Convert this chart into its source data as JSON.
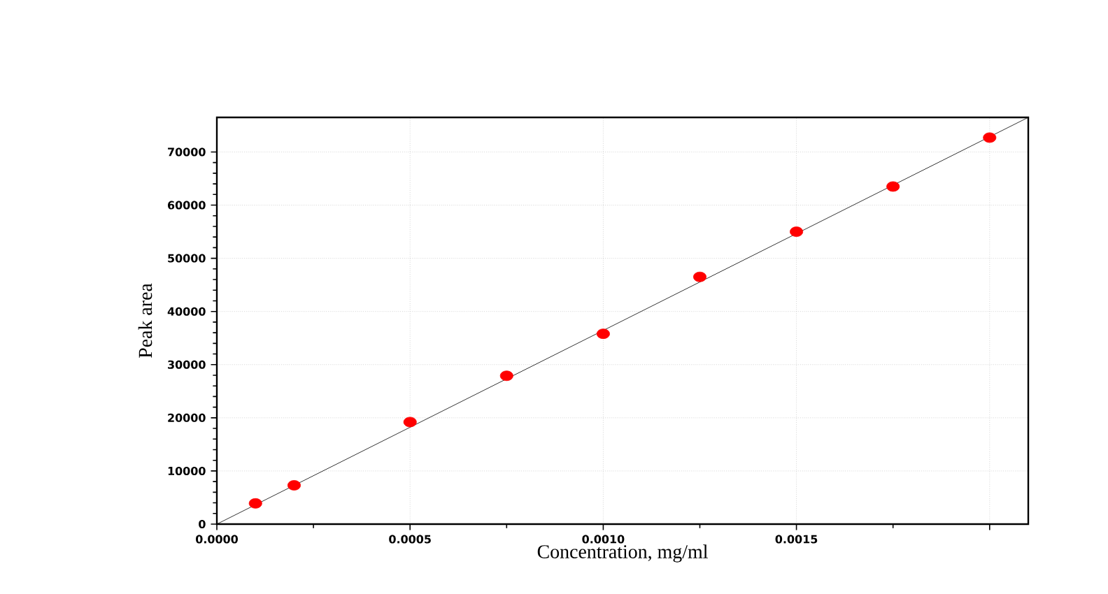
{
  "chart_data": {
    "type": "scatter",
    "xlabel": "Concentration, mg/ml",
    "ylabel": "Peak area",
    "xlim": [
      0,
      0.0021
    ],
    "ylim": [
      0,
      76500
    ],
    "xticks": [
      {
        "value": 0,
        "label": "0.0000"
      },
      {
        "value": 0.0005,
        "label": "0.0005"
      },
      {
        "value": 0.001,
        "label": "0.0010"
      },
      {
        "value": 0.0015,
        "label": "0.0015"
      },
      {
        "value": 0.002,
        "label": null
      }
    ],
    "yticks": [
      0,
      10000,
      20000,
      30000,
      40000,
      50000,
      60000,
      70000
    ],
    "grid": true,
    "marker": "circle",
    "series": [
      {
        "type": "scatter",
        "color": "#ff0000",
        "x": [
          0.0001,
          0.0002,
          0.0005,
          0.00075,
          0.001,
          0.00125,
          0.0015,
          0.00175,
          0.002
        ],
        "values": [
          3900,
          7300,
          19200,
          27900,
          35800,
          46500,
          55000,
          63500,
          72700
        ]
      },
      {
        "type": "line",
        "color": "#000000",
        "marker": "none",
        "x": [
          0,
          0.0021
        ],
        "values": [
          0,
          76500
        ]
      }
    ]
  }
}
